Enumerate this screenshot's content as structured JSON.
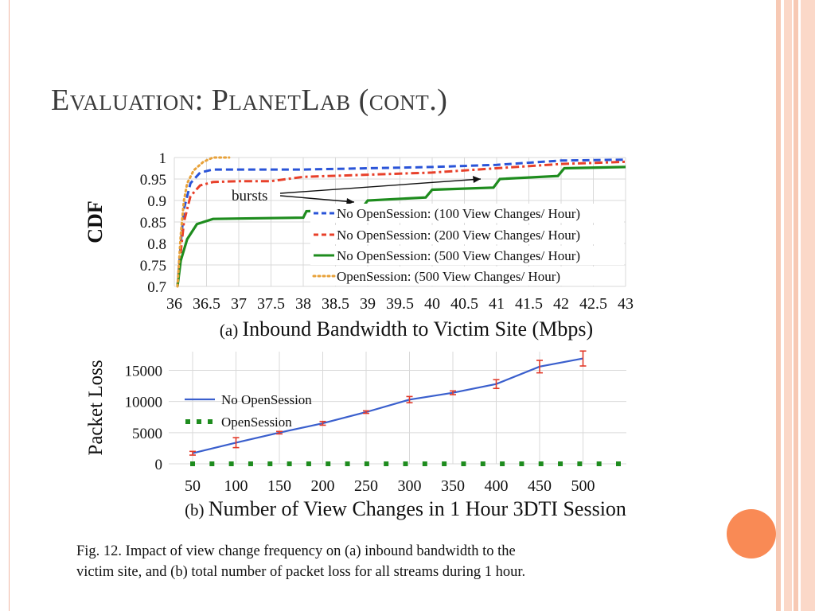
{
  "slide": {
    "title": "Evaluation: PlanetLab (cont.)"
  },
  "colors": {
    "no100": "#2a54d8",
    "no200": "#e8402a",
    "no500": "#1e8c1e",
    "open500": "#e8a23a",
    "lossLine": "#3a5fcd",
    "errBar": "#e23a2a",
    "openSess": "#1e8c1e",
    "accent": "#f98a55"
  },
  "annotation": {
    "bursts_label": "bursts"
  },
  "caption": {
    "line1": "Fig. 12.   Impact of view change frequency on (a) inbound bandwidth to the",
    "line2": "victim site, and (b) total number of packet loss for all streams during 1 hour."
  },
  "chart_data": [
    {
      "type": "line",
      "panel_label": "(a)",
      "xlabel": "Inbound Bandwidth to Victim Site (Mbps)",
      "ylabel": "CDF",
      "xlim": [
        36,
        43
      ],
      "ylim": [
        0.7,
        1.0
      ],
      "xticks": [
        "36",
        "36.5",
        "37",
        "37.5",
        "38",
        "38.5",
        "39",
        "39.5",
        "40",
        "40.5",
        "41",
        "41.5",
        "42",
        "42.5",
        "43"
      ],
      "yticks": [
        "0.7",
        "0.75",
        "0.8",
        "0.85",
        "0.9",
        "0.95",
        "1"
      ],
      "grid": true,
      "legend_position": "bottom-right",
      "series": [
        {
          "name": "No OpenSession: (100 View Changes/ Hour)",
          "style": "dashed",
          "points": [
            [
              36.05,
              0.7
            ],
            [
              36.1,
              0.8
            ],
            [
              36.15,
              0.88
            ],
            [
              36.25,
              0.94
            ],
            [
              36.4,
              0.965
            ],
            [
              36.6,
              0.972
            ],
            [
              37.0,
              0.972
            ],
            [
              38.0,
              0.972
            ],
            [
              39.0,
              0.975
            ],
            [
              40.0,
              0.978
            ],
            [
              41.0,
              0.983
            ],
            [
              42.0,
              0.993
            ],
            [
              43.0,
              0.995
            ]
          ]
        },
        {
          "name": "No OpenSession: (200 View Changes/ Hour)",
          "style": "dash-dot",
          "points": [
            [
              36.05,
              0.7
            ],
            [
              36.1,
              0.78
            ],
            [
              36.15,
              0.85
            ],
            [
              36.25,
              0.91
            ],
            [
              36.4,
              0.935
            ],
            [
              36.6,
              0.943
            ],
            [
              37.0,
              0.945
            ],
            [
              37.5,
              0.945
            ],
            [
              38.0,
              0.955
            ],
            [
              39.0,
              0.96
            ],
            [
              40.0,
              0.965
            ],
            [
              41.0,
              0.975
            ],
            [
              42.0,
              0.985
            ],
            [
              43.0,
              0.99
            ]
          ]
        },
        {
          "name": "No OpenSession: (500 View Changes/ Hour)",
          "style": "solid",
          "points": [
            [
              36.05,
              0.7
            ],
            [
              36.1,
              0.76
            ],
            [
              36.2,
              0.81
            ],
            [
              36.35,
              0.845
            ],
            [
              36.6,
              0.857
            ],
            [
              37.0,
              0.858
            ],
            [
              38.0,
              0.86
            ],
            [
              38.05,
              0.875
            ],
            [
              38.9,
              0.88
            ],
            [
              39.0,
              0.9
            ],
            [
              39.9,
              0.907
            ],
            [
              40.0,
              0.925
            ],
            [
              40.95,
              0.93
            ],
            [
              41.05,
              0.95
            ],
            [
              41.95,
              0.957
            ],
            [
              42.05,
              0.975
            ],
            [
              43.0,
              0.978
            ]
          ]
        },
        {
          "name": "OpenSession: (500 View Changes/ Hour)",
          "style": "dotted",
          "points": [
            [
              36.05,
              0.7
            ],
            [
              36.1,
              0.82
            ],
            [
              36.15,
              0.9
            ],
            [
              36.2,
              0.94
            ],
            [
              36.3,
              0.97
            ],
            [
              36.45,
              0.99
            ],
            [
              36.6,
              1.0
            ],
            [
              36.85,
              1.0
            ]
          ]
        }
      ]
    },
    {
      "type": "line",
      "panel_label": "(b)",
      "xlabel": "Number of View Changes in 1 Hour 3DTI Session",
      "ylabel": "Packet Loss",
      "categories": [
        "50",
        "100",
        "150",
        "200",
        "250",
        "300",
        "350",
        "400",
        "450",
        "500"
      ],
      "ylim": [
        0,
        18000
      ],
      "yticks": [
        "0",
        "5000",
        "10000",
        "15000"
      ],
      "grid": true,
      "legend_position": "left",
      "series": [
        {
          "name": "No OpenSession",
          "style": "solid",
          "values": [
            1700,
            3400,
            5000,
            6500,
            8300,
            10300,
            11400,
            12800,
            15600,
            16900
          ],
          "error": [
            300,
            800,
            200,
            300,
            200,
            500,
            300,
            700,
            1000,
            1200
          ]
        },
        {
          "name": "OpenSession",
          "style": "dotted",
          "values": [
            0,
            0,
            0,
            0,
            0,
            0,
            0,
            0,
            0,
            0
          ]
        }
      ]
    }
  ]
}
